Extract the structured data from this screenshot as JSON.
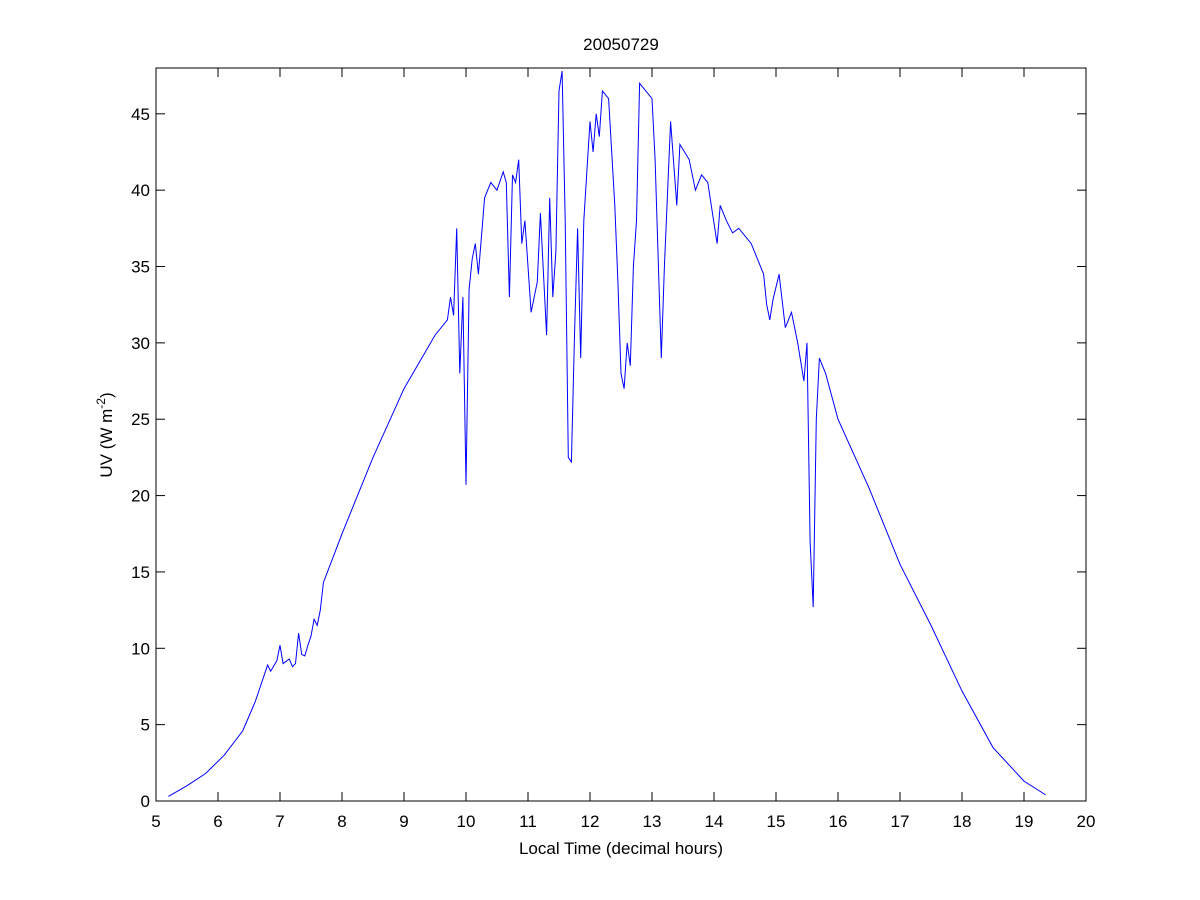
{
  "chart_data": {
    "type": "line",
    "title": "20050729",
    "xlabel": "Local Time (decimal hours)",
    "ylabel": [
      "UV (W m",
      "-2",
      ")"
    ],
    "xlim": [
      5,
      20
    ],
    "xticks": [
      5,
      6,
      7,
      8,
      9,
      10,
      11,
      12,
      13,
      14,
      15,
      16,
      17,
      18,
      19,
      20
    ],
    "ylim": [
      0,
      48
    ],
    "yticks": [
      0,
      5,
      10,
      15,
      20,
      25,
      30,
      35,
      40,
      45
    ],
    "color": "#0000ff",
    "x": [
      5.2,
      5.5,
      5.8,
      6.1,
      6.4,
      6.6,
      6.8,
      6.85,
      6.95,
      7.0,
      7.05,
      7.15,
      7.2,
      7.25,
      7.3,
      7.35,
      7.4,
      7.45,
      7.5,
      7.55,
      7.6,
      7.65,
      7.7,
      8.0,
      8.5,
      9.0,
      9.5,
      9.7,
      9.75,
      9.8,
      9.85,
      9.9,
      9.95,
      10.0,
      10.05,
      10.1,
      10.15,
      10.2,
      10.3,
      10.4,
      10.5,
      10.6,
      10.65,
      10.7,
      10.75,
      10.8,
      10.85,
      10.9,
      10.95,
      11.05,
      11.15,
      11.2,
      11.25,
      11.3,
      11.35,
      11.4,
      11.45,
      11.5,
      11.55,
      11.6,
      11.65,
      11.7,
      11.75,
      11.8,
      11.85,
      11.9,
      12.0,
      12.05,
      12.1,
      12.15,
      12.2,
      12.3,
      12.4,
      12.45,
      12.5,
      12.55,
      12.6,
      12.65,
      12.7,
      12.75,
      12.8,
      12.9,
      13.0,
      13.05,
      13.15,
      13.2,
      13.3,
      13.4,
      13.45,
      13.6,
      13.7,
      13.8,
      13.9,
      14.05,
      14.1,
      14.2,
      14.3,
      14.4,
      14.6,
      14.8,
      14.85,
      14.9,
      14.95,
      15.05,
      15.15,
      15.25,
      15.35,
      15.45,
      15.5,
      15.55,
      15.6,
      15.65,
      15.7,
      15.8,
      16.0,
      16.5,
      17.0,
      17.5,
      18.0,
      18.5,
      19.0,
      19.35
    ],
    "values": [
      0.3,
      1.0,
      1.8,
      3.0,
      4.6,
      6.5,
      8.9,
      8.5,
      9.2,
      10.2,
      9.0,
      9.3,
      8.8,
      9.0,
      11.0,
      9.6,
      9.5,
      10.2,
      10.8,
      11.9,
      11.5,
      12.5,
      14.3,
      17.5,
      22.5,
      27.0,
      30.5,
      31.5,
      33.0,
      31.8,
      37.5,
      28.0,
      33.0,
      20.7,
      33.5,
      35.5,
      36.5,
      34.5,
      39.5,
      40.5,
      40.0,
      41.2,
      40.5,
      33.0,
      41.0,
      40.5,
      42.0,
      36.5,
      38.0,
      32.0,
      34.0,
      38.5,
      34.5,
      30.5,
      39.5,
      33.0,
      36.0,
      46.5,
      47.8,
      38.0,
      22.5,
      22.2,
      30.5,
      37.5,
      29.0,
      38.0,
      44.5,
      42.5,
      45.0,
      43.5,
      46.5,
      46.0,
      39.0,
      34.0,
      28.0,
      27.0,
      30.0,
      28.5,
      35.0,
      38.0,
      47.0,
      46.5,
      46.0,
      42.0,
      29.0,
      35.0,
      44.5,
      39.0,
      43.0,
      42.0,
      40.0,
      41.0,
      40.5,
      36.5,
      39.0,
      38.0,
      37.2,
      37.5,
      36.5,
      34.5,
      32.5,
      31.5,
      32.8,
      34.5,
      31.0,
      32.0,
      30.0,
      27.5,
      30.0,
      17.0,
      12.7,
      25.0,
      29.0,
      28.0,
      25.0,
      20.5,
      15.5,
      11.5,
      7.2,
      3.5,
      1.3,
      0.4
    ]
  }
}
